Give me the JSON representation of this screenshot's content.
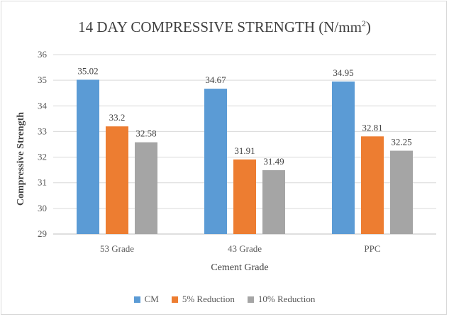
{
  "chart_data": {
    "type": "bar",
    "title_main": "14 DAY COMPRESSIVE STRENGTH (N/mm",
    "title_sup": "2",
    "title_close": ")",
    "xlabel": "Cement Grade",
    "ylabel": "Compressive Strength",
    "ylim": [
      29,
      36
    ],
    "yticks": [
      "29",
      "30",
      "31",
      "32",
      "33",
      "34",
      "35",
      "36"
    ],
    "grid": true,
    "legend_position": "bottom",
    "categories": [
      "53 Grade",
      "43 Grade",
      "PPC"
    ],
    "series": [
      {
        "name": "CM",
        "color": "#5B9BD5",
        "values": [
          35.02,
          34.67,
          34.95
        ],
        "labels": [
          "35.02",
          "34.67",
          "34.95"
        ]
      },
      {
        "name": "5% Reduction",
        "color": "#ED7D31",
        "values": [
          33.2,
          31.91,
          32.81
        ],
        "labels": [
          "33.2",
          "31.91",
          "32.81"
        ]
      },
      {
        "name": "10% Reduction",
        "color": "#A5A5A5",
        "values": [
          32.58,
          31.49,
          32.25
        ],
        "labels": [
          "32.58",
          "31.49",
          "32.25"
        ]
      }
    ]
  }
}
